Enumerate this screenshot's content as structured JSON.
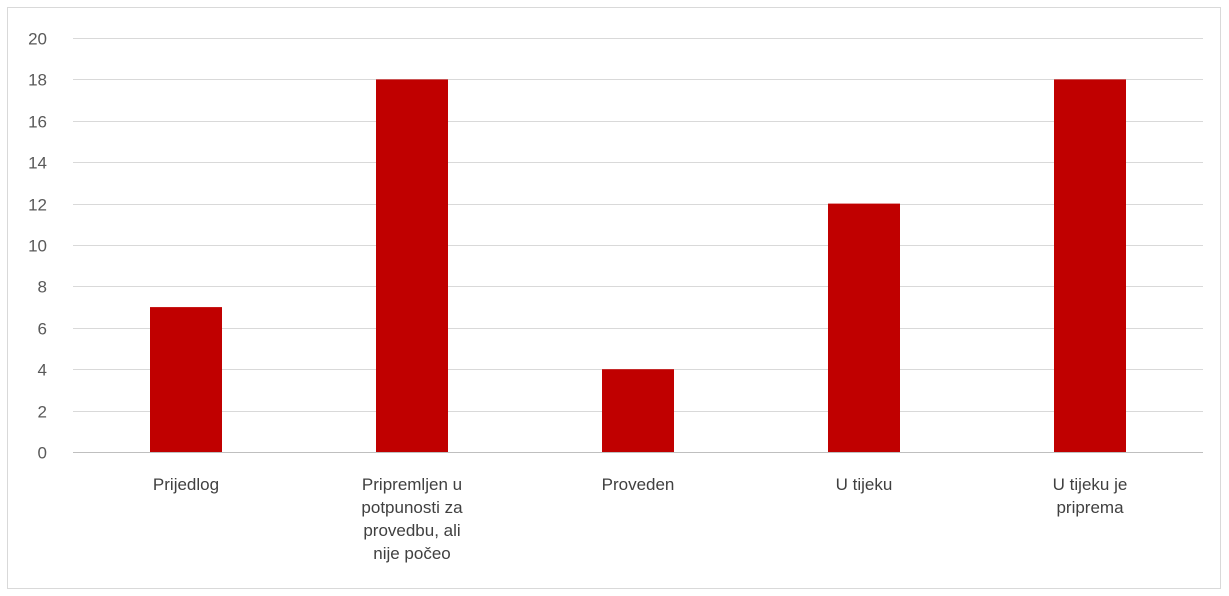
{
  "chart_data": {
    "type": "bar",
    "title": "",
    "xlabel": "",
    "ylabel": "",
    "categories": [
      "Prijedlog",
      "Pripremljen u potpunosti za provedbu, ali nije počeo",
      "Proveden",
      "U tijeku",
      "U tijeku je priprema"
    ],
    "values": [
      7,
      18,
      4,
      12,
      18
    ],
    "ylim": [
      0,
      20
    ],
    "yticks": [
      "0",
      "2",
      "4",
      "6",
      "8",
      "10",
      "12",
      "14",
      "16",
      "18",
      "20"
    ],
    "grid": true,
    "legend": "none",
    "bar_color": "#c00000"
  }
}
